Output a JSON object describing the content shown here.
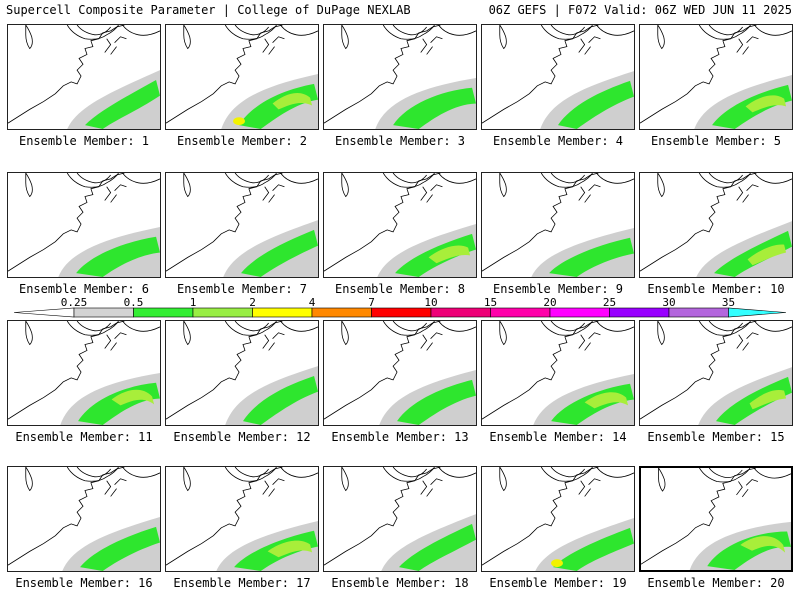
{
  "header": {
    "title": "Supercell Composite Parameter | College of DuPage NEXLAB",
    "valid": "06Z GEFS | F072 Valid: 06Z WED JUN 11 2025"
  },
  "members": [
    {
      "label": "Ensemble Member: 1"
    },
    {
      "label": "Ensemble Member: 2"
    },
    {
      "label": "Ensemble Member: 3"
    },
    {
      "label": "Ensemble Member: 4"
    },
    {
      "label": "Ensemble Member: 5"
    },
    {
      "label": "Ensemble Member: 6"
    },
    {
      "label": "Ensemble Member: 7"
    },
    {
      "label": "Ensemble Member: 8"
    },
    {
      "label": "Ensemble Member: 9"
    },
    {
      "label": "Ensemble Member: 10"
    },
    {
      "label": "Ensemble Member: 11"
    },
    {
      "label": "Ensemble Member: 12"
    },
    {
      "label": "Ensemble Member: 13"
    },
    {
      "label": "Ensemble Member: 14"
    },
    {
      "label": "Ensemble Member: 15"
    },
    {
      "label": "Ensemble Member: 16"
    },
    {
      "label": "Ensemble Member: 17"
    },
    {
      "label": "Ensemble Member: 18"
    },
    {
      "label": "Ensemble Member: 19"
    },
    {
      "label": "Ensemble Member: 20",
      "highlighted": true
    }
  ],
  "colorbar": {
    "ticks": [
      "0.25",
      "0.5",
      "1",
      "2",
      "4",
      "7",
      "10",
      "15",
      "20",
      "25",
      "30",
      "35"
    ],
    "colors": [
      "#d3d3d3",
      "#33ee33",
      "#99ee44",
      "#ffff00",
      "#ff8800",
      "#ff0000",
      "#ee0077",
      "#ff00aa",
      "#ff00ff",
      "#9900ff",
      "#b366dd",
      "#33ffff"
    ]
  },
  "legend_colors": {
    "gray": "#cfcfcf",
    "green": "#2ee62e",
    "light_green": "#a8ee3a",
    "yellow": "#f2f200",
    "coast": "#000000"
  }
}
